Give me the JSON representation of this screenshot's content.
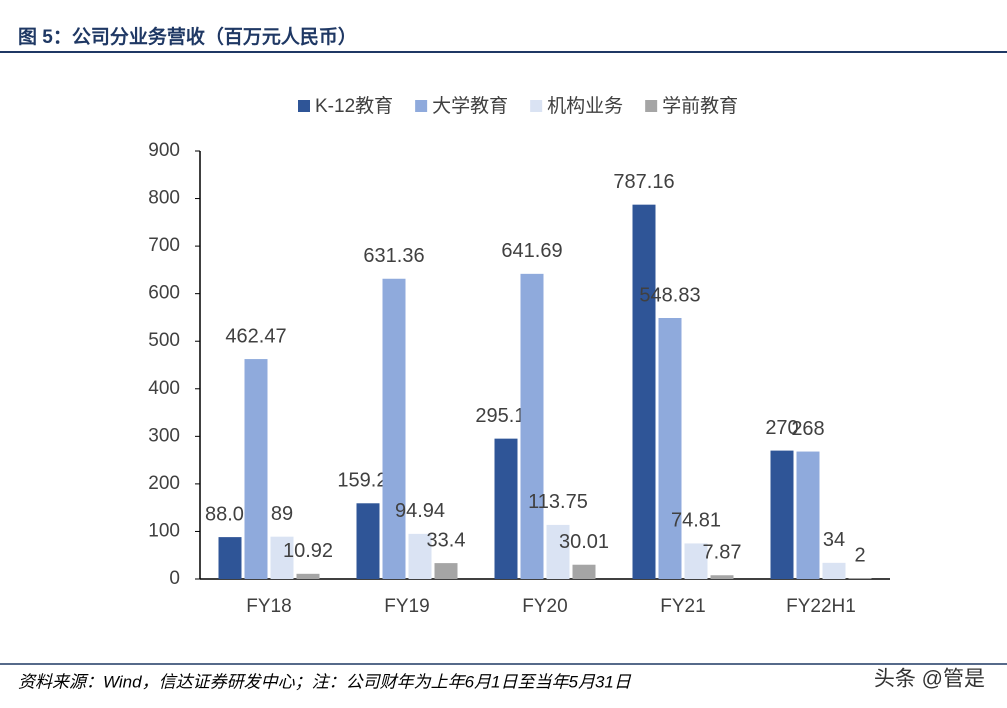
{
  "chart_data": {
    "type": "bar",
    "title": "图 5：公司分业务营收（百万元人民币）",
    "source": "资料来源：Wind，信达证券研发中心；注：公司财年为上年6月1日至当年5月31日",
    "watermark": "头条 @管是",
    "categories": [
      "FY18",
      "FY19",
      "FY20",
      "FY21",
      "FY22H1"
    ],
    "series": [
      {
        "name": "K-12教育",
        "color": "#2f5597",
        "values": [
          88.07,
          159.21,
          295.14,
          787.16,
          270
        ]
      },
      {
        "name": "大学教育",
        "color": "#8faadc",
        "values": [
          462.47,
          631.36,
          641.69,
          548.83,
          268
        ]
      },
      {
        "name": "机构业务",
        "color": "#dae3f3",
        "values": [
          89,
          94.94,
          113.75,
          74.81,
          34
        ]
      },
      {
        "name": "学前教育",
        "color": "#a5a5a5",
        "values": [
          10.92,
          33.4,
          30.01,
          7.87,
          2
        ]
      }
    ],
    "ylim": [
      0,
      900
    ],
    "yticks": [
      0,
      100,
      200,
      300,
      400,
      500,
      600,
      700,
      800,
      900
    ],
    "grid": false,
    "legend": "top"
  }
}
